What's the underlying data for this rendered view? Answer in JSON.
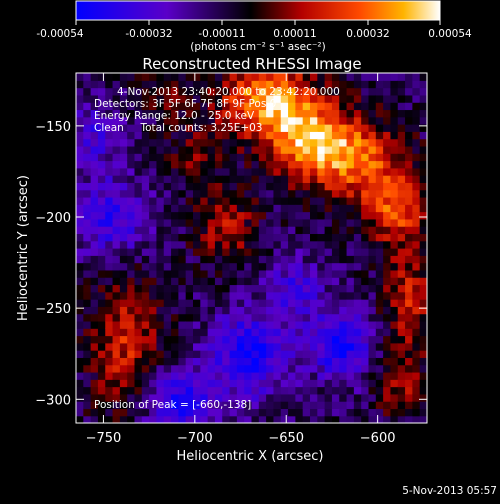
{
  "colorbar": {
    "ticks": [
      "-0.00054",
      "-0.00032",
      "-0.00011",
      "0.00011",
      "0.00032",
      "0.00054"
    ],
    "unit_label": "(photons cm⁻² s⁻¹ asec⁻²)"
  },
  "plot": {
    "title": "Reconstructed RHESSI Image",
    "xlabel": "Heliocentric X (arcsec)",
    "ylabel": "Heliocentric Y (arcsec)"
  },
  "overlay": {
    "time_range": "4-Nov-2013 23:40:20.000 to 23:42:20.000",
    "detectors": "Detectors: 3F 5F 6F 7F 8F 9F Pos 0",
    "energy": "Energy Range: 12.0 - 25.0 keV",
    "clean": "Clean     Total counts: 3.25E+03",
    "peak": "Position of Peak = [-660,-138]"
  },
  "footer": {
    "timestamp": "5-Nov-2013 05:57"
  },
  "chart_data": {
    "type": "heatmap",
    "title": "Reconstructed RHESSI Image",
    "xlabel": "Heliocentric X (arcsec)",
    "ylabel": "Heliocentric Y (arcsec)",
    "xlim": [
      -765,
      -573
    ],
    "ylim": [
      -313,
      -121
    ],
    "x_ticks": [
      -750,
      -700,
      -650,
      -600
    ],
    "y_ticks": [
      -150,
      -200,
      -250,
      -300
    ],
    "colorscale": {
      "min": -0.00054,
      "max": 0.00054
    },
    "colormap": [
      "#0000ff",
      "#5a00c8",
      "#000000",
      "#b40000",
      "#ff4a00",
      "#ffb400",
      "#ffffff"
    ],
    "sources": [
      {
        "x": -660,
        "y": -135,
        "sx": 18,
        "sy": 14,
        "amp": 0.00054
      },
      {
        "x": -638,
        "y": -158,
        "sx": 16,
        "sy": 14,
        "amp": 0.00045
      },
      {
        "x": -612,
        "y": -168,
        "sx": 18,
        "sy": 16,
        "amp": 0.0004
      },
      {
        "x": -590,
        "y": -195,
        "sx": 12,
        "sy": 14,
        "amp": 0.00035
      },
      {
        "x": -583,
        "y": -245,
        "sx": 10,
        "sy": 22,
        "amp": 0.00028
      },
      {
        "x": -683,
        "y": -205,
        "sx": 12,
        "sy": 14,
        "amp": 0.00025
      },
      {
        "x": -738,
        "y": -270,
        "sx": 14,
        "sy": 26,
        "amp": 0.0003
      },
      {
        "x": -700,
        "y": -165,
        "sx": 12,
        "sy": 12,
        "amp": 0.00018
      },
      {
        "x": -715,
        "y": -130,
        "sx": 10,
        "sy": 10,
        "amp": 0.00015
      },
      {
        "x": -588,
        "y": -292,
        "sx": 10,
        "sy": 12,
        "amp": 0.00022
      },
      {
        "x": -620,
        "y": -270,
        "sx": 12,
        "sy": 14,
        "amp": -0.00035
      },
      {
        "x": -670,
        "y": -275,
        "sx": 14,
        "sy": 16,
        "amp": -0.0004
      },
      {
        "x": -745,
        "y": -200,
        "sx": 14,
        "sy": 16,
        "amp": -0.00028
      },
      {
        "x": -755,
        "y": -155,
        "sx": 10,
        "sy": 12,
        "amp": -0.00022
      },
      {
        "x": -710,
        "y": -300,
        "sx": 14,
        "sy": 12,
        "amp": -0.00035
      },
      {
        "x": -645,
        "y": -240,
        "sx": 10,
        "sy": 12,
        "amp": -0.00025
      }
    ],
    "peak": [
      -660,
      -138
    ]
  }
}
